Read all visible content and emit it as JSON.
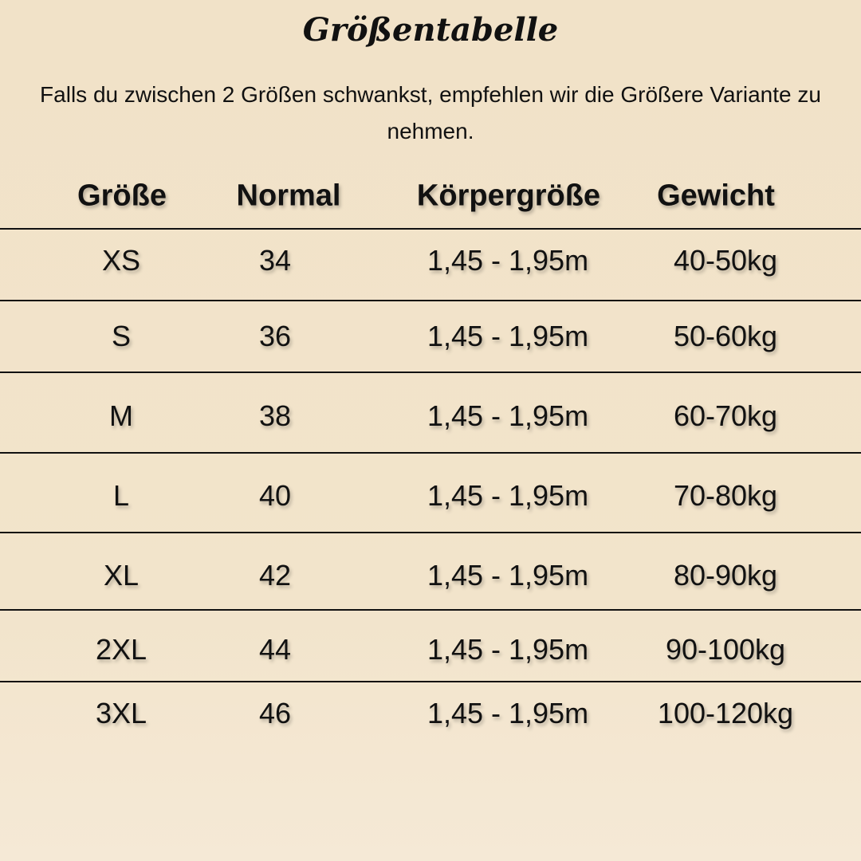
{
  "title": "Größentabelle",
  "subtitle": "Falls du zwischen 2 Größen schwankst, empfehlen wir die Größere Variante zu nehmen.",
  "headers": [
    "Größe",
    "Normal",
    "Körpergröße",
    "Gewicht"
  ],
  "rows": [
    [
      "XS",
      "34",
      "1,45 - 1,95m",
      "40-50kg"
    ],
    [
      "S",
      "36",
      "1,45 - 1,95m",
      "50-60kg"
    ],
    [
      "M",
      "38",
      "1,45 - 1,95m",
      "60-70kg"
    ],
    [
      "L",
      "40",
      "1,45 - 1,95m",
      "70-80kg"
    ],
    [
      "XL",
      "42",
      "1,45 - 1,95m",
      "80-90kg"
    ],
    [
      "2XL",
      "44",
      "1,45 - 1,95m",
      "90-100kg"
    ],
    [
      "3XL",
      "46",
      "1,45 - 1,95m",
      "100-120kg"
    ]
  ]
}
